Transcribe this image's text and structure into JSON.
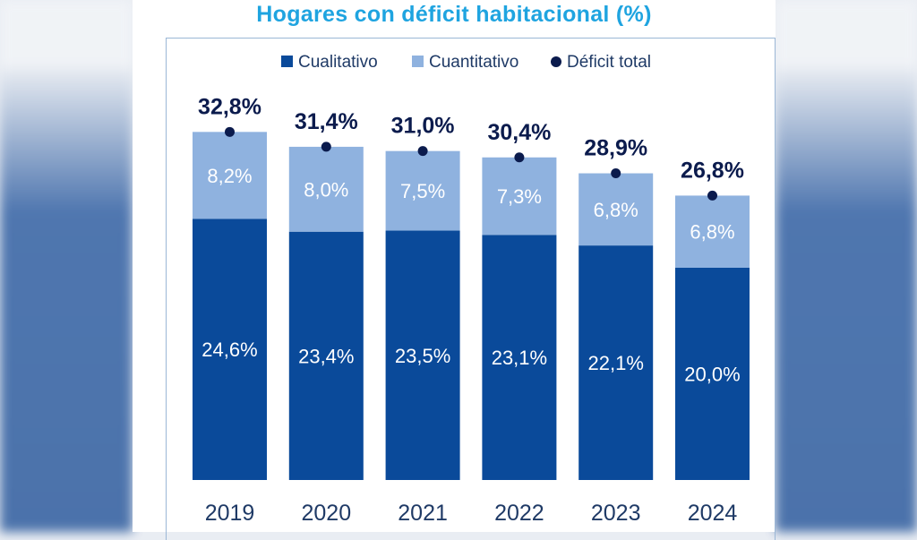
{
  "chart_data": {
    "type": "bar",
    "stacked": true,
    "title": "Hogares con déficit habitacional (%)",
    "categories": [
      "2019",
      "2020",
      "2021",
      "2022",
      "2023",
      "2024"
    ],
    "series": [
      {
        "name": "Cualitativo",
        "values": [
          24.6,
          23.4,
          23.5,
          23.1,
          22.1,
          20.0
        ],
        "labels": [
          "24,6%",
          "23,4%",
          "23,5%",
          "23,1%",
          "22,1%",
          "20,0%"
        ],
        "color": "#0a4a9a"
      },
      {
        "name": "Cuantitativo",
        "values": [
          8.2,
          8.0,
          7.5,
          7.3,
          6.8,
          6.8
        ],
        "labels": [
          "8,2%",
          "8,0%",
          "7,5%",
          "7,3%",
          "6,8%",
          "6,8%"
        ],
        "color": "#8fb2df"
      }
    ],
    "total": {
      "name": "Déficit total",
      "values": [
        32.8,
        31.4,
        31.0,
        30.4,
        28.9,
        26.8
      ],
      "labels": [
        "32,8%",
        "31,4%",
        "31,0%",
        "30,4%",
        "28,9%",
        "26,8%"
      ],
      "color": "#0b1b4d"
    },
    "legend_position": "top",
    "grid": false
  }
}
